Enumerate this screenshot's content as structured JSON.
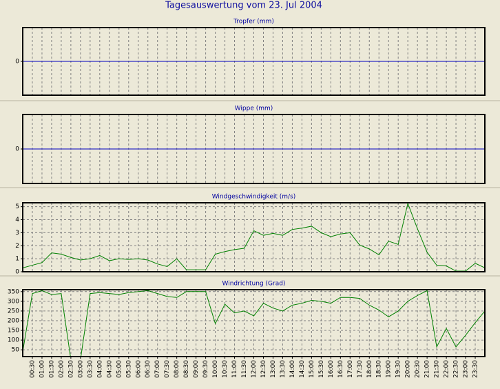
{
  "title": "Tagesauswertung vom 23. Jul 2004",
  "chart_data": [
    {
      "type": "line",
      "title": "Tropfer (mm)",
      "color": "#0000c0",
      "values": [
        0,
        0,
        0,
        0,
        0,
        0,
        0,
        0,
        0,
        0,
        0,
        0,
        0,
        0,
        0,
        0,
        0,
        0,
        0,
        0,
        0,
        0,
        0,
        0,
        0,
        0,
        0,
        0,
        0,
        0,
        0,
        0,
        0,
        0,
        0,
        0,
        0,
        0,
        0,
        0,
        0,
        0,
        0,
        0,
        0,
        0,
        0,
        0,
        0
      ],
      "ylim": [
        -1,
        1
      ],
      "yticks": [
        0
      ],
      "grid": true
    },
    {
      "type": "line",
      "title": "Wippe (mm)",
      "color": "#0000c0",
      "values": [
        0,
        0,
        0,
        0,
        0,
        0,
        0,
        0,
        0,
        0,
        0,
        0,
        0,
        0,
        0,
        0,
        0,
        0,
        0,
        0,
        0,
        0,
        0,
        0,
        0,
        0,
        0,
        0,
        0,
        0,
        0,
        0,
        0,
        0,
        0,
        0,
        0,
        0,
        0,
        0,
        0,
        0,
        0,
        0,
        0,
        0,
        0,
        0,
        0
      ],
      "ylim": [
        -1,
        1
      ],
      "yticks": [
        0
      ],
      "grid": true
    },
    {
      "type": "line",
      "title": "Windgeschwindigkeit (m/s)",
      "color": "#008000",
      "values": [
        0.3,
        0.5,
        0.7,
        1.45,
        1.35,
        1.1,
        0.9,
        1.0,
        1.25,
        0.85,
        1.0,
        0.95,
        1.0,
        0.9,
        0.6,
        0.4,
        1.0,
        0.15,
        0.15,
        0.15,
        1.35,
        1.55,
        1.7,
        1.8,
        3.15,
        2.8,
        2.95,
        2.8,
        3.25,
        3.35,
        3.5,
        3.0,
        2.7,
        2.9,
        3.0,
        2.05,
        1.75,
        1.3,
        2.35,
        2.1,
        5.25,
        3.3,
        1.5,
        0.5,
        0.45,
        0.05,
        0.05,
        0.65,
        0.3
      ],
      "ylim": [
        0,
        5.3
      ],
      "yticks": [
        0,
        1,
        2,
        3,
        4,
        5
      ],
      "grid": true
    },
    {
      "type": "line",
      "title": "Windrichtung (Grad)",
      "color": "#008000",
      "categories": [
        null,
        "00:30",
        "01:00",
        "01:30",
        "02:00",
        "02:30",
        "03:00",
        "03:30",
        "04:00",
        "04:30",
        "05:00",
        "05:30",
        "06:00",
        "06:30",
        "07:00",
        "07:30",
        "08:00",
        "08:30",
        "09:00",
        "09:30",
        "10:00",
        "10:30",
        "11:00",
        "11:30",
        "12:00",
        "12:30",
        "13:00",
        "13:30",
        "14:00",
        "14:30",
        "15:00",
        "15:30",
        "16:00",
        "16:30",
        "17:00",
        "17:30",
        "18:00",
        "18:30",
        "19:00",
        "19:30",
        "20:00",
        "20:30",
        "21:00",
        "21:30",
        "22:00",
        "22:30",
        "23:00",
        "23:30",
        null
      ],
      "values": [
        40,
        340,
        355,
        335,
        340,
        0,
        0,
        340,
        345,
        340,
        335,
        345,
        350,
        355,
        340,
        325,
        320,
        350,
        350,
        350,
        185,
        285,
        240,
        250,
        225,
        290,
        265,
        250,
        280,
        290,
        305,
        300,
        290,
        320,
        320,
        315,
        280,
        255,
        220,
        250,
        300,
        330,
        355,
        65,
        160,
        65,
        125,
        190,
        250
      ],
      "ylim": [
        15,
        360
      ],
      "yticks": [
        50,
        100,
        150,
        200,
        250,
        300,
        350
      ],
      "grid": true
    }
  ]
}
